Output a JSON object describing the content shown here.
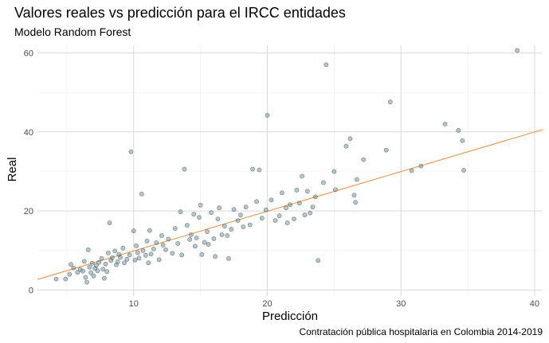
{
  "chart_data": {
    "type": "scatter",
    "title": "Valores reales vs predicción para el IRCC entidades",
    "subtitle": "Modelo Random Forest",
    "caption": "Contratación pública hospitalaria en Colombia 2014-2019",
    "xlabel": "Predicción",
    "ylabel": "Real",
    "xlim": [
      2.8,
      40.6
    ],
    "ylim": [
      -1.5,
      61.9
    ],
    "xticks": [
      10,
      20,
      30,
      40
    ],
    "yticks": [
      0,
      20,
      40,
      60
    ],
    "xtick_labels": [
      "10",
      "20",
      "30",
      "40"
    ],
    "ytick_labels": [
      "0",
      "20",
      "40",
      "60"
    ],
    "grid": true,
    "point_color": "#5f7c86",
    "line_color": "#ef8a3a",
    "fit_line": {
      "x": [
        2.8,
        40.6
      ],
      "y": [
        2.7,
        40.6
      ]
    },
    "points": [
      {
        "x": 4.2,
        "y": 2.8
      },
      {
        "x": 4.9,
        "y": 2.8
      },
      {
        "x": 5.2,
        "y": 4.0
      },
      {
        "x": 5.3,
        "y": 6.5
      },
      {
        "x": 5.5,
        "y": 5.6
      },
      {
        "x": 5.8,
        "y": 4.5
      },
      {
        "x": 6.0,
        "y": 5.2
      },
      {
        "x": 6.2,
        "y": 4.8
      },
      {
        "x": 6.3,
        "y": 7.3
      },
      {
        "x": 6.4,
        "y": 3.2
      },
      {
        "x": 6.5,
        "y": 2.0
      },
      {
        "x": 6.6,
        "y": 10.2
      },
      {
        "x": 6.7,
        "y": 5.8
      },
      {
        "x": 6.8,
        "y": 4.4
      },
      {
        "x": 6.9,
        "y": 6.8
      },
      {
        "x": 7.0,
        "y": 3.6
      },
      {
        "x": 7.1,
        "y": 5.5
      },
      {
        "x": 7.2,
        "y": 6.2
      },
      {
        "x": 7.3,
        "y": 4.9
      },
      {
        "x": 7.4,
        "y": 7.0
      },
      {
        "x": 7.6,
        "y": 8.0
      },
      {
        "x": 7.7,
        "y": 5.3
      },
      {
        "x": 7.8,
        "y": 3.0
      },
      {
        "x": 7.9,
        "y": 6.6
      },
      {
        "x": 8.0,
        "y": 4.7
      },
      {
        "x": 8.1,
        "y": 9.4
      },
      {
        "x": 8.2,
        "y": 17.0
      },
      {
        "x": 8.3,
        "y": 7.5
      },
      {
        "x": 8.4,
        "y": 8.2
      },
      {
        "x": 8.6,
        "y": 9.9
      },
      {
        "x": 8.7,
        "y": 6.4
      },
      {
        "x": 8.8,
        "y": 7.2
      },
      {
        "x": 8.9,
        "y": 9.0
      },
      {
        "x": 9.0,
        "y": 8.3
      },
      {
        "x": 9.2,
        "y": 10.6
      },
      {
        "x": 9.3,
        "y": 6.9
      },
      {
        "x": 9.5,
        "y": 7.8
      },
      {
        "x": 9.7,
        "y": 8.9
      },
      {
        "x": 9.8,
        "y": 35.0
      },
      {
        "x": 10.0,
        "y": 15.0
      },
      {
        "x": 10.1,
        "y": 7.6
      },
      {
        "x": 10.2,
        "y": 11.2
      },
      {
        "x": 10.3,
        "y": 9.5
      },
      {
        "x": 10.4,
        "y": 8.1
      },
      {
        "x": 10.6,
        "y": 24.3
      },
      {
        "x": 10.7,
        "y": 10.0
      },
      {
        "x": 10.9,
        "y": 8.8
      },
      {
        "x": 11.0,
        "y": 12.4
      },
      {
        "x": 11.1,
        "y": 6.9
      },
      {
        "x": 11.2,
        "y": 15.1
      },
      {
        "x": 11.3,
        "y": 9.1
      },
      {
        "x": 11.5,
        "y": 10.4
      },
      {
        "x": 11.7,
        "y": 12.0
      },
      {
        "x": 11.9,
        "y": 7.7
      },
      {
        "x": 12.1,
        "y": 13.8
      },
      {
        "x": 12.2,
        "y": 11.4
      },
      {
        "x": 12.4,
        "y": 10.2
      },
      {
        "x": 12.6,
        "y": 12.9
      },
      {
        "x": 12.9,
        "y": 9.3
      },
      {
        "x": 13.1,
        "y": 15.6
      },
      {
        "x": 13.3,
        "y": 11.8
      },
      {
        "x": 13.5,
        "y": 19.8
      },
      {
        "x": 13.6,
        "y": 8.9
      },
      {
        "x": 13.8,
        "y": 30.6
      },
      {
        "x": 14.0,
        "y": 16.4
      },
      {
        "x": 14.2,
        "y": 12.8
      },
      {
        "x": 14.3,
        "y": 14.0
      },
      {
        "x": 14.5,
        "y": 19.2
      },
      {
        "x": 14.6,
        "y": 11.1
      },
      {
        "x": 14.7,
        "y": 13.2
      },
      {
        "x": 14.9,
        "y": 18.4
      },
      {
        "x": 15.0,
        "y": 21.5
      },
      {
        "x": 15.1,
        "y": 9.0
      },
      {
        "x": 15.3,
        "y": 12.1
      },
      {
        "x": 15.5,
        "y": 14.8
      },
      {
        "x": 15.6,
        "y": 11.6
      },
      {
        "x": 15.8,
        "y": 19.6
      },
      {
        "x": 16.0,
        "y": 13.0
      },
      {
        "x": 16.1,
        "y": 8.5
      },
      {
        "x": 16.3,
        "y": 18.0
      },
      {
        "x": 16.4,
        "y": 20.8
      },
      {
        "x": 16.6,
        "y": 14.0
      },
      {
        "x": 16.8,
        "y": 16.2
      },
      {
        "x": 17.0,
        "y": 13.8
      },
      {
        "x": 17.1,
        "y": 8.0
      },
      {
        "x": 17.3,
        "y": 15.4
      },
      {
        "x": 17.5,
        "y": 20.4
      },
      {
        "x": 17.8,
        "y": 17.6
      },
      {
        "x": 18.0,
        "y": 19.0
      },
      {
        "x": 18.2,
        "y": 16.0
      },
      {
        "x": 18.4,
        "y": 21.0
      },
      {
        "x": 18.7,
        "y": 16.5
      },
      {
        "x": 18.9,
        "y": 30.6
      },
      {
        "x": 19.2,
        "y": 22.4
      },
      {
        "x": 19.4,
        "y": 30.4
      },
      {
        "x": 19.6,
        "y": 18.2
      },
      {
        "x": 19.9,
        "y": 20.3
      },
      {
        "x": 20.0,
        "y": 44.2
      },
      {
        "x": 20.3,
        "y": 22.8
      },
      {
        "x": 20.6,
        "y": 17.6
      },
      {
        "x": 20.9,
        "y": 18.8
      },
      {
        "x": 21.1,
        "y": 24.6
      },
      {
        "x": 21.4,
        "y": 20.8
      },
      {
        "x": 21.5,
        "y": 17.0
      },
      {
        "x": 21.7,
        "y": 21.6
      },
      {
        "x": 22.0,
        "y": 18.0
      },
      {
        "x": 22.2,
        "y": 25.3
      },
      {
        "x": 22.4,
        "y": 22.0
      },
      {
        "x": 22.6,
        "y": 28.8
      },
      {
        "x": 22.8,
        "y": 19.0
      },
      {
        "x": 23.0,
        "y": 25.0
      },
      {
        "x": 23.2,
        "y": 19.5
      },
      {
        "x": 23.4,
        "y": 21.0
      },
      {
        "x": 23.6,
        "y": 23.6
      },
      {
        "x": 23.8,
        "y": 7.5
      },
      {
        "x": 24.2,
        "y": 27.2
      },
      {
        "x": 24.4,
        "y": 57.0
      },
      {
        "x": 25.0,
        "y": 30.0
      },
      {
        "x": 25.1,
        "y": 25.4
      },
      {
        "x": 25.9,
        "y": 36.4
      },
      {
        "x": 26.2,
        "y": 38.3
      },
      {
        "x": 26.5,
        "y": 24.0
      },
      {
        "x": 26.6,
        "y": 22.2
      },
      {
        "x": 26.7,
        "y": 28.0
      },
      {
        "x": 27.2,
        "y": 33.0
      },
      {
        "x": 28.9,
        "y": 35.4
      },
      {
        "x": 29.2,
        "y": 47.6
      },
      {
        "x": 30.8,
        "y": 30.2
      },
      {
        "x": 31.5,
        "y": 31.4
      },
      {
        "x": 33.3,
        "y": 42.0
      },
      {
        "x": 34.3,
        "y": 40.4
      },
      {
        "x": 34.6,
        "y": 37.8
      },
      {
        "x": 34.7,
        "y": 30.3
      },
      {
        "x": 38.7,
        "y": 60.6
      }
    ]
  }
}
